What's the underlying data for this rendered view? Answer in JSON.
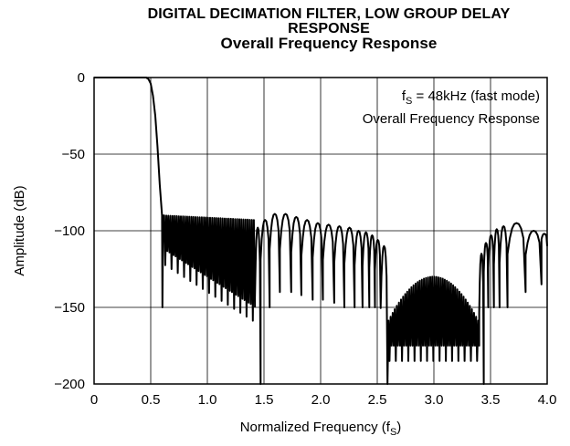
{
  "chart_data": {
    "type": "line",
    "title_line1": "DIGITAL DECIMATION FILTER, LOW GROUP DELAY",
    "title_line2": "RESPONSE",
    "subtitle": "Overall Frequency Response",
    "xlabel": "Normalized Frequency (f",
    "xlabel_sub": "S",
    "xlabel_end": ")",
    "ylabel": "Amplitude (dB)",
    "xlim": [
      0,
      4.0
    ],
    "ylim": [
      -200,
      0
    ],
    "x_ticks": [
      "0",
      "0.5",
      "1.0",
      "1.5",
      "2.0",
      "2.5",
      "3.0",
      "3.5",
      "4.0"
    ],
    "y_ticks": [
      "0",
      "−50",
      "−100",
      "−150",
      "−200"
    ],
    "annotation_line1_main": "f",
    "annotation_line1_sub": "S",
    "annotation_line1_rest": " = 48kHz (fast mode)",
    "annotation_line2": "Overall Frequency Response",
    "grid": true,
    "color": "#000000",
    "series": [
      {
        "x": [
          0,
          0.46,
          0.48,
          0.5,
          0.52,
          0.54,
          0.56,
          0.58,
          0.6,
          0.603,
          0.61
        ],
        "y": [
          0,
          0,
          -1,
          -4,
          -12,
          -25,
          -45,
          -70,
          -90,
          -150,
          -90
        ]
      }
    ],
    "envelopes": [
      {
        "x0": 0.61,
        "x1": 1.42,
        "peak_start": -90,
        "peak_end": -93,
        "dip_start": -112,
        "dip_end": -150,
        "lobes": 44
      },
      {
        "x0": 2.59,
        "x1": 3.4,
        "peak_start": -160,
        "peak_end": -160,
        "peak_mid": -130,
        "dip_start": -175,
        "dip_end": -175,
        "lobes": 44
      }
    ],
    "wide_lobes": [
      {
        "x0": 1.42,
        "x1": 1.47,
        "peak": -98,
        "deep": -200
      },
      {
        "x0": 1.47,
        "x1": 1.55,
        "peak": -93,
        "deep": -150
      },
      {
        "x0": 1.55,
        "x1": 1.64,
        "peak": -89,
        "deep": -140
      },
      {
        "x0": 1.64,
        "x1": 1.74,
        "peak": -89,
        "deep": -140
      },
      {
        "x0": 1.74,
        "x1": 1.83,
        "peak": -91,
        "deep": -142
      },
      {
        "x0": 1.83,
        "x1": 1.93,
        "peak": -93,
        "deep": -145
      },
      {
        "x0": 1.93,
        "x1": 2.02,
        "peak": -95,
        "deep": -145
      },
      {
        "x0": 2.02,
        "x1": 2.12,
        "peak": -96,
        "deep": -147
      },
      {
        "x0": 2.12,
        "x1": 2.21,
        "peak": -97,
        "deep": -150
      },
      {
        "x0": 2.21,
        "x1": 2.3,
        "peak": -98,
        "deep": -150
      },
      {
        "x0": 2.3,
        "x1": 2.37,
        "peak": -100,
        "deep": -150
      },
      {
        "x0": 2.37,
        "x1": 2.43,
        "peak": -101,
        "deep": -150
      },
      {
        "x0": 2.43,
        "x1": 2.48,
        "peak": -103,
        "deep": -150
      },
      {
        "x0": 2.48,
        "x1": 2.53,
        "peak": -106,
        "deep": -150
      },
      {
        "x0": 2.53,
        "x1": 2.59,
        "peak": -110,
        "deep": -200
      },
      {
        "x0": 3.4,
        "x1": 3.44,
        "peak": -115,
        "deep": -200
      },
      {
        "x0": 3.44,
        "x1": 3.48,
        "peak": -108,
        "deep": -150
      },
      {
        "x0": 3.48,
        "x1": 3.53,
        "peak": -103,
        "deep": -150
      },
      {
        "x0": 3.53,
        "x1": 3.58,
        "peak": -99,
        "deep": -150
      },
      {
        "x0": 3.58,
        "x1": 3.65,
        "peak": -97,
        "deep": -150
      },
      {
        "x0": 3.65,
        "x1": 3.81,
        "peak": -95,
        "deep": -140
      },
      {
        "x0": 3.81,
        "x1": 3.95,
        "peak": -100,
        "deep": -135
      },
      {
        "x0": 3.95,
        "x1": 4.0,
        "peak": -102,
        "deep": -110
      }
    ]
  }
}
